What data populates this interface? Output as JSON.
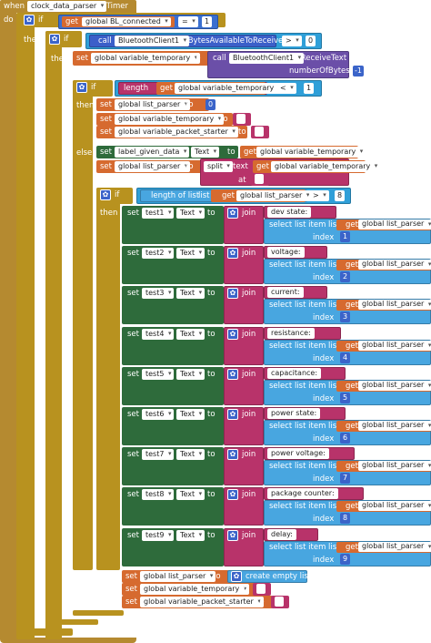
{
  "event": {
    "when": "when",
    "component": "clock_data_parser",
    "event": ".Timer",
    "do": "do"
  },
  "kw": {
    "if": "if",
    "then": "then",
    "else": "else",
    "set": "set",
    "to": "to",
    "call": "call",
    "get": "get",
    "join": "join",
    "at": "at",
    "index": "index",
    "list": "list"
  },
  "cond1": {
    "get": "get",
    "var": "global BL_connected",
    "op": "=",
    "value": "1"
  },
  "cond2": {
    "call": "call",
    "component": "BluetoothClient1",
    "method": ".BytesAvailableToReceive",
    "op": ">",
    "value": "0"
  },
  "set_temp": {
    "var": "global variable_temporary",
    "call": "call",
    "component": "BluetoothClient1",
    "method": ".ReceiveText",
    "param": "numberOfBytes",
    "value": "-1"
  },
  "cond3": {
    "fn": "length",
    "get": "get",
    "var": "global variable_temporary",
    "op": "<",
    "value": "1"
  },
  "then_sets": [
    {
      "var": "global list_parser",
      "value": "0"
    },
    {
      "var": "global variable_temporary"
    },
    {
      "var": "global variable_packet_starter"
    }
  ],
  "else_set1": {
    "component": "label_given_data",
    "prop": "Text",
    "get": "get",
    "var": "global variable_temporary"
  },
  "else_set2": {
    "var": "global list_parser",
    "fn": "split",
    "text": "text",
    "get": "get",
    "var2": "global variable_temporary"
  },
  "cond4": {
    "fn": "length of list",
    "list": "list",
    "get": "get",
    "var": "global list_parser",
    "op": ">",
    "value": "8"
  },
  "rows": [
    {
      "comp": "test1",
      "prop": "Text",
      "label": "dev state:",
      "index": "1"
    },
    {
      "comp": "test2",
      "prop": "Text",
      "label": "voltage:",
      "index": "2"
    },
    {
      "comp": "test3",
      "prop": "Text",
      "label": "current:",
      "index": "3"
    },
    {
      "comp": "test4",
      "prop": "Text",
      "label": "resistance:",
      "index": "4"
    },
    {
      "comp": "test5",
      "prop": "Text",
      "label": "capacitance:",
      "index": "5"
    },
    {
      "comp": "test6",
      "prop": "Text",
      "label": "power state:",
      "index": "6"
    },
    {
      "comp": "test7",
      "prop": "Text",
      "label": "power voltage:",
      "index": "7"
    },
    {
      "comp": "test8",
      "prop": "Text",
      "label": "package counter:",
      "index": "8"
    },
    {
      "comp": "test9",
      "prop": "Text",
      "label": "delay:",
      "index": "9"
    }
  ],
  "select": {
    "fn": "select list item  list",
    "get": "get",
    "var": "global list_parser",
    "index": "index"
  },
  "final": [
    {
      "var": "global list_parser",
      "value": "create empty list"
    },
    {
      "var": "global variable_temporary"
    },
    {
      "var": "global variable_packet_starter"
    }
  ]
}
